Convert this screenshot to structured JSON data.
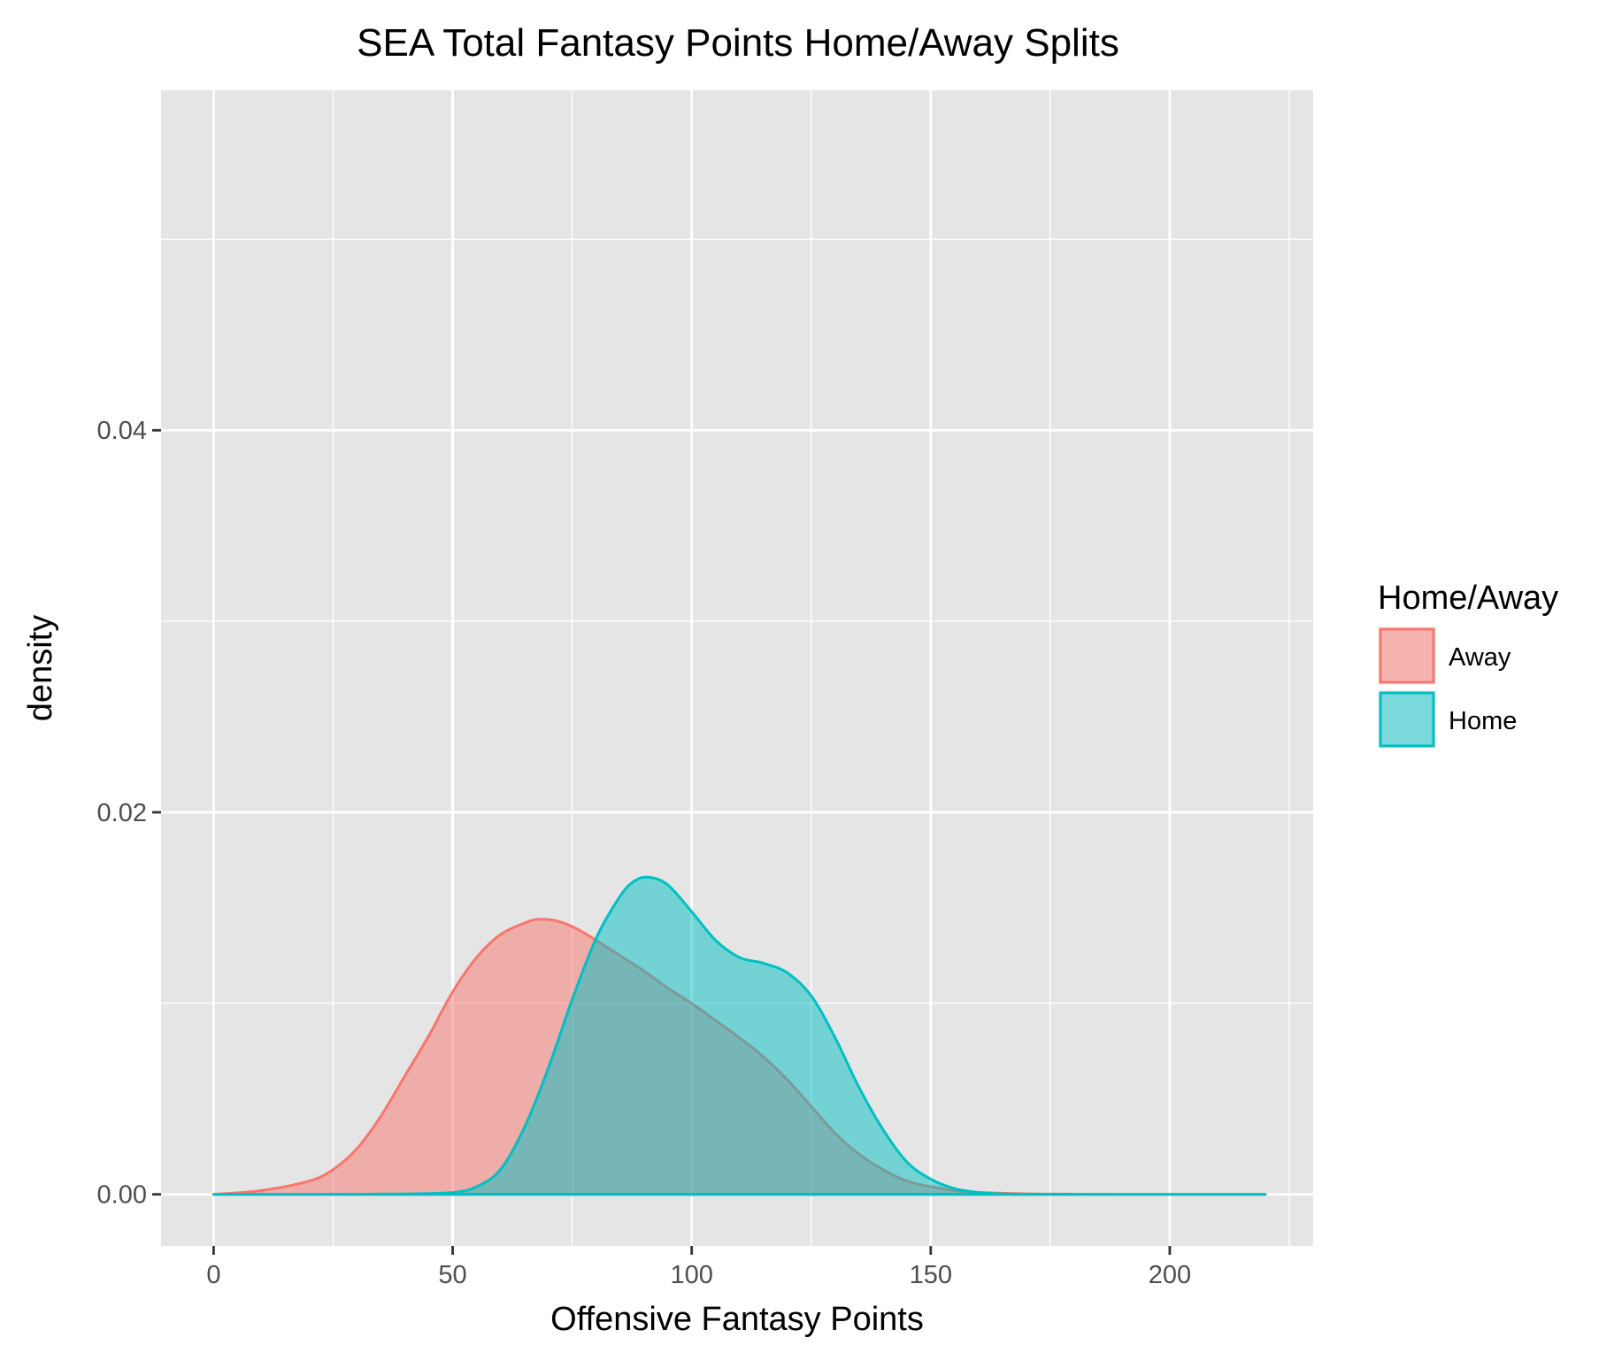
{
  "chart_data": {
    "type": "area",
    "title": "SEA Total Fantasy Points Home/Away Splits",
    "xlabel": "Offensive Fantasy Points",
    "ylabel": "density",
    "xlim": [
      -11,
      230
    ],
    "ylim": [
      -0.0027,
      0.0578
    ],
    "x_ticks": [
      0,
      50,
      100,
      150,
      200
    ],
    "x_tick_labels": [
      "0",
      "50",
      "100",
      "150",
      "200"
    ],
    "y_ticks": [
      0.0,
      0.02,
      0.04
    ],
    "y_tick_labels": [
      "0.00",
      "0.02",
      "0.04"
    ],
    "grid": true,
    "legend": {
      "title": "Home/Away",
      "position": "right"
    },
    "series": [
      {
        "name": "Away",
        "color": "#F8766D",
        "fill": "#F8766D",
        "x": [
          0,
          10,
          20,
          25,
          30,
          35,
          40,
          45,
          50,
          55,
          60,
          65,
          68,
          72,
          76,
          80,
          85,
          90,
          95,
          100,
          105,
          110,
          115,
          120,
          125,
          130,
          135,
          140,
          145,
          150,
          155,
          160,
          170,
          180,
          190,
          200,
          210,
          220
        ],
        "y": [
          0.0,
          0.0002,
          0.0007,
          0.0013,
          0.0024,
          0.0041,
          0.0062,
          0.0083,
          0.0106,
          0.0124,
          0.0136,
          0.0142,
          0.0144,
          0.0143,
          0.0139,
          0.0133,
          0.0125,
          0.0117,
          0.0108,
          0.01,
          0.0091,
          0.0082,
          0.0072,
          0.006,
          0.0046,
          0.0032,
          0.0021,
          0.0013,
          0.0007,
          0.0004,
          0.0002,
          0.0001,
          3e-05,
          1e-05,
          0,
          0,
          0,
          0
        ]
      },
      {
        "name": "Home",
        "color": "#00BFC4",
        "fill": "#00BFC4",
        "x": [
          0,
          20,
          40,
          50,
          55,
          60,
          65,
          70,
          75,
          80,
          85,
          88,
          91,
          95,
          100,
          105,
          110,
          115,
          120,
          125,
          130,
          135,
          140,
          145,
          150,
          155,
          160,
          165,
          170,
          180,
          190,
          200,
          210,
          220
        ],
        "y": [
          0,
          0,
          2e-05,
          0.0001,
          0.0004,
          0.0013,
          0.0035,
          0.0066,
          0.0102,
          0.0134,
          0.0156,
          0.0164,
          0.0166,
          0.0162,
          0.0148,
          0.0133,
          0.0124,
          0.0121,
          0.0116,
          0.0104,
          0.0082,
          0.0056,
          0.0034,
          0.0017,
          0.0008,
          0.0003,
          0.0001,
          3e-05,
          1e-05,
          0,
          0,
          0,
          0,
          0
        ]
      }
    ]
  }
}
